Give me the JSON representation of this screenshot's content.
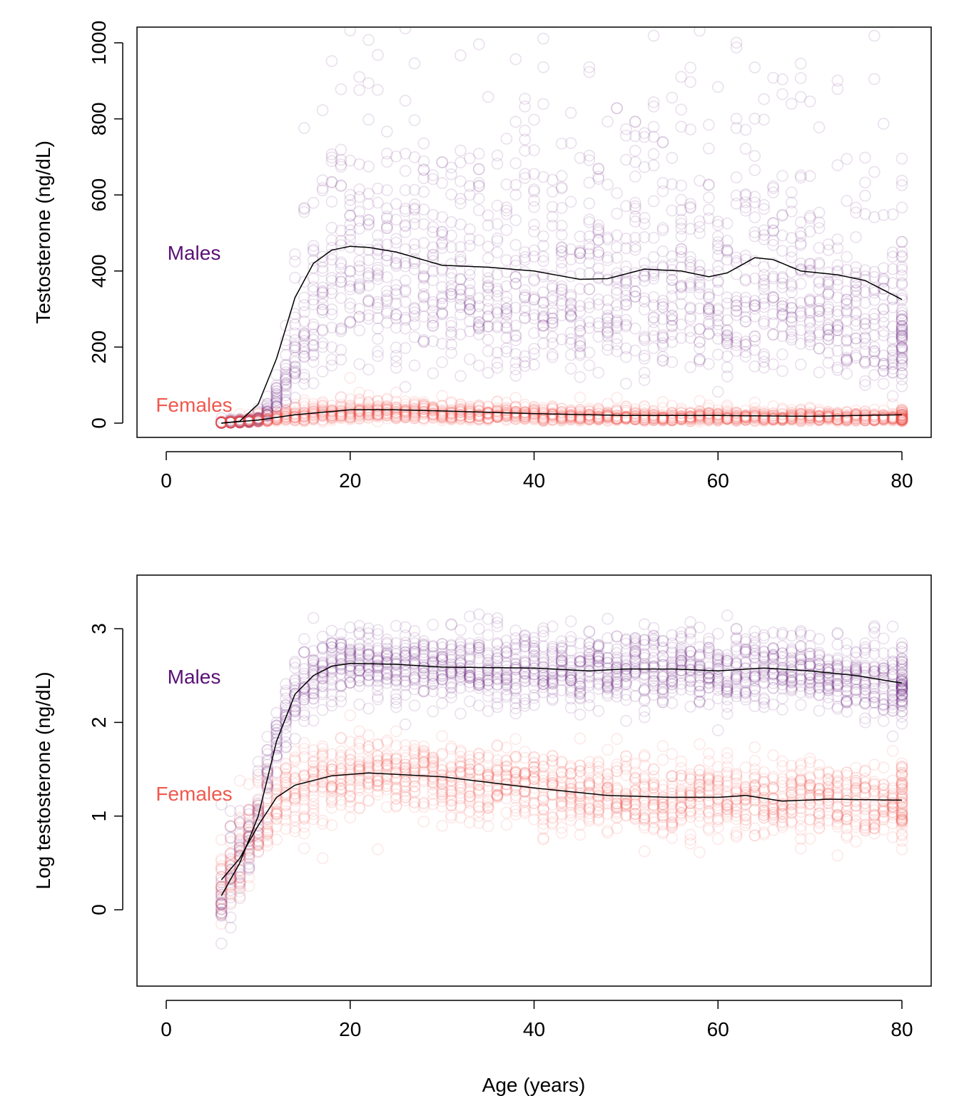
{
  "chart_data": [
    {
      "type": "scatter",
      "ylabel": "Testosterone (ng/dL)",
      "xlabel": "",
      "xlim": [
        0,
        80
      ],
      "ylim": [
        0,
        1000
      ],
      "xticks": [
        0,
        20,
        40,
        60,
        80
      ],
      "yticks": [
        0,
        200,
        400,
        600,
        800,
        1000
      ],
      "grid": false,
      "series": [
        {
          "name": "Males",
          "color": "#5a1076",
          "smooth": {
            "x": [
              6,
              8,
              10,
              12,
              14,
              16,
              18,
              20,
              22,
              25,
              30,
              35,
              40,
              45,
              48,
              52,
              56,
              59,
              61,
              64,
              66,
              69,
              73,
              76,
              80
            ],
            "y": [
              0,
              5,
              50,
              170,
              330,
              420,
              455,
              465,
              462,
              450,
              415,
              410,
              400,
              378,
              380,
              405,
              400,
              385,
              395,
              435,
              430,
              400,
              390,
              375,
              325
            ]
          }
        },
        {
          "name": "Females",
          "color": "#f0584c",
          "smooth": {
            "x": [
              6,
              10,
              14,
              20,
              25,
              30,
              40,
              50,
              60,
              70,
              80
            ],
            "y": [
              0,
              8,
              22,
              35,
              35,
              32,
              25,
              20,
              20,
              18,
              22
            ]
          }
        }
      ]
    },
    {
      "type": "scatter",
      "ylabel": "Log testosterone (ng/dL)",
      "xlabel": "Age (years)",
      "xlim": [
        0,
        80
      ],
      "ylim": [
        -0.7,
        3.5
      ],
      "xticks": [
        0,
        20,
        40,
        60,
        80
      ],
      "yticks": [
        0,
        1,
        2,
        3
      ],
      "grid": false,
      "series": [
        {
          "name": "Males",
          "color": "#5a1076",
          "smooth": {
            "x": [
              6,
              8,
              10,
              12,
              14,
              16,
              18,
              20,
              25,
              30,
              40,
              46,
              50,
              55,
              60,
              65,
              70,
              75,
              80
            ],
            "y": [
              0.15,
              0.5,
              1.0,
              1.8,
              2.3,
              2.5,
              2.6,
              2.63,
              2.62,
              2.59,
              2.58,
              2.55,
              2.57,
              2.57,
              2.55,
              2.58,
              2.55,
              2.5,
              2.42
            ]
          }
        },
        {
          "name": "Females",
          "color": "#f0584c",
          "smooth": {
            "x": [
              6,
              8,
              10,
              12,
              14,
              16,
              18,
              22,
              30,
              40,
              48,
              55,
              60,
              63,
              67,
              72,
              80
            ],
            "y": [
              0.32,
              0.55,
              0.9,
              1.2,
              1.33,
              1.38,
              1.43,
              1.46,
              1.42,
              1.3,
              1.22,
              1.2,
              1.2,
              1.22,
              1.16,
              1.18,
              1.17
            ]
          }
        }
      ]
    }
  ]
}
